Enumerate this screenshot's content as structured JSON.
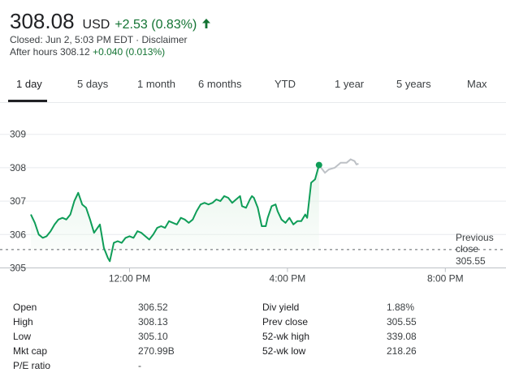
{
  "quote": {
    "price": "308.08",
    "currency": "USD",
    "change": "+2.53 (0.83%)",
    "closed_text": "Closed: Jun 2, 5:03 PM EDT · Disclaimer",
    "after_hours_label": "After hours 308.12",
    "after_hours_change": "+0.040 (0.013%)"
  },
  "tabs": [
    "1 day",
    "5 days",
    "1 month",
    "6 months",
    "YTD",
    "1 year",
    "5 years",
    "Max"
  ],
  "active_tab": "1 day",
  "colors": {
    "positive": "#137333",
    "line": "#0f9d58",
    "after_hours": "#bdc1c6"
  },
  "chart_data": {
    "type": "line",
    "x_ticks": [
      "12:00 PM",
      "4:00 PM",
      "8:00 PM"
    ],
    "y_ticks": [
      "305",
      "306",
      "307",
      "308",
      "309"
    ],
    "ylim": [
      305,
      309.2
    ],
    "previous_close_label": [
      "Previous",
      "close"
    ],
    "previous_close": "305.55",
    "series": [
      {
        "values": [
          [
            0,
            306.6
          ],
          [
            0.1,
            306.35
          ],
          [
            0.2,
            306.0
          ],
          [
            0.3,
            305.9
          ],
          [
            0.4,
            305.95
          ],
          [
            0.5,
            306.1
          ],
          [
            0.6,
            306.3
          ],
          [
            0.7,
            306.45
          ],
          [
            0.8,
            306.5
          ],
          [
            0.9,
            306.45
          ],
          [
            1.0,
            306.6
          ],
          [
            1.1,
            307.0
          ],
          [
            1.2,
            307.25
          ],
          [
            1.3,
            306.9
          ],
          [
            1.4,
            306.8
          ],
          [
            1.5,
            306.45
          ],
          [
            1.6,
            306.05
          ],
          [
            1.75,
            306.3
          ],
          [
            1.85,
            305.6
          ],
          [
            1.95,
            305.3
          ],
          [
            2.0,
            305.2
          ],
          [
            2.1,
            305.75
          ],
          [
            2.2,
            305.8
          ],
          [
            2.3,
            305.75
          ],
          [
            2.4,
            305.9
          ],
          [
            2.5,
            305.95
          ],
          [
            2.6,
            305.9
          ],
          [
            2.7,
            306.1
          ],
          [
            2.8,
            306.05
          ],
          [
            2.9,
            305.95
          ],
          [
            3.0,
            305.85
          ],
          [
            3.1,
            306.0
          ],
          [
            3.2,
            306.2
          ],
          [
            3.3,
            306.25
          ],
          [
            3.4,
            306.2
          ],
          [
            3.5,
            306.4
          ],
          [
            3.6,
            306.35
          ],
          [
            3.7,
            306.3
          ],
          [
            3.8,
            306.5
          ],
          [
            3.9,
            306.45
          ],
          [
            4.0,
            306.35
          ],
          [
            4.1,
            306.45
          ],
          [
            4.2,
            306.7
          ],
          [
            4.3,
            306.9
          ],
          [
            4.4,
            306.95
          ],
          [
            4.5,
            306.9
          ],
          [
            4.6,
            306.95
          ],
          [
            4.7,
            307.05
          ],
          [
            4.8,
            307.0
          ],
          [
            4.9,
            307.15
          ],
          [
            5.0,
            307.1
          ],
          [
            5.1,
            306.95
          ],
          [
            5.2,
            307.05
          ],
          [
            5.3,
            307.15
          ],
          [
            5.35,
            306.85
          ],
          [
            5.45,
            306.8
          ],
          [
            5.55,
            307.05
          ],
          [
            5.6,
            307.15
          ],
          [
            5.65,
            307.1
          ],
          [
            5.75,
            306.8
          ],
          [
            5.85,
            306.25
          ],
          [
            5.95,
            306.25
          ],
          [
            6.0,
            306.5
          ],
          [
            6.1,
            306.85
          ],
          [
            6.2,
            306.9
          ],
          [
            6.25,
            306.7
          ],
          [
            6.35,
            306.45
          ],
          [
            6.45,
            306.35
          ],
          [
            6.55,
            306.5
          ],
          [
            6.65,
            306.3
          ],
          [
            6.75,
            306.4
          ],
          [
            6.85,
            306.4
          ],
          [
            6.95,
            306.6
          ],
          [
            7.0,
            306.5
          ],
          [
            7.1,
            307.55
          ],
          [
            7.2,
            307.65
          ],
          [
            7.3,
            308.08
          ]
        ]
      },
      {
        "values": [
          [
            7.3,
            308.08
          ],
          [
            7.45,
            307.85
          ],
          [
            7.55,
            307.95
          ],
          [
            7.7,
            308.0
          ],
          [
            7.85,
            308.15
          ],
          [
            8.0,
            308.15
          ],
          [
            8.1,
            308.25
          ],
          [
            8.2,
            308.2
          ],
          [
            8.25,
            308.1
          ],
          [
            8.3,
            308.12
          ]
        ]
      }
    ]
  },
  "stats": {
    "left": [
      {
        "label": "Open",
        "value": "306.52"
      },
      {
        "label": "High",
        "value": "308.13"
      },
      {
        "label": "Low",
        "value": "305.10"
      },
      {
        "label": "Mkt cap",
        "value": "270.99B"
      },
      {
        "label": "P/E ratio",
        "value": "-"
      }
    ],
    "right": [
      {
        "label": "Div yield",
        "value": "1.88%"
      },
      {
        "label": "Prev close",
        "value": "305.55"
      },
      {
        "label": "52-wk high",
        "value": "339.08"
      },
      {
        "label": "52-wk low",
        "value": "218.26"
      }
    ]
  }
}
